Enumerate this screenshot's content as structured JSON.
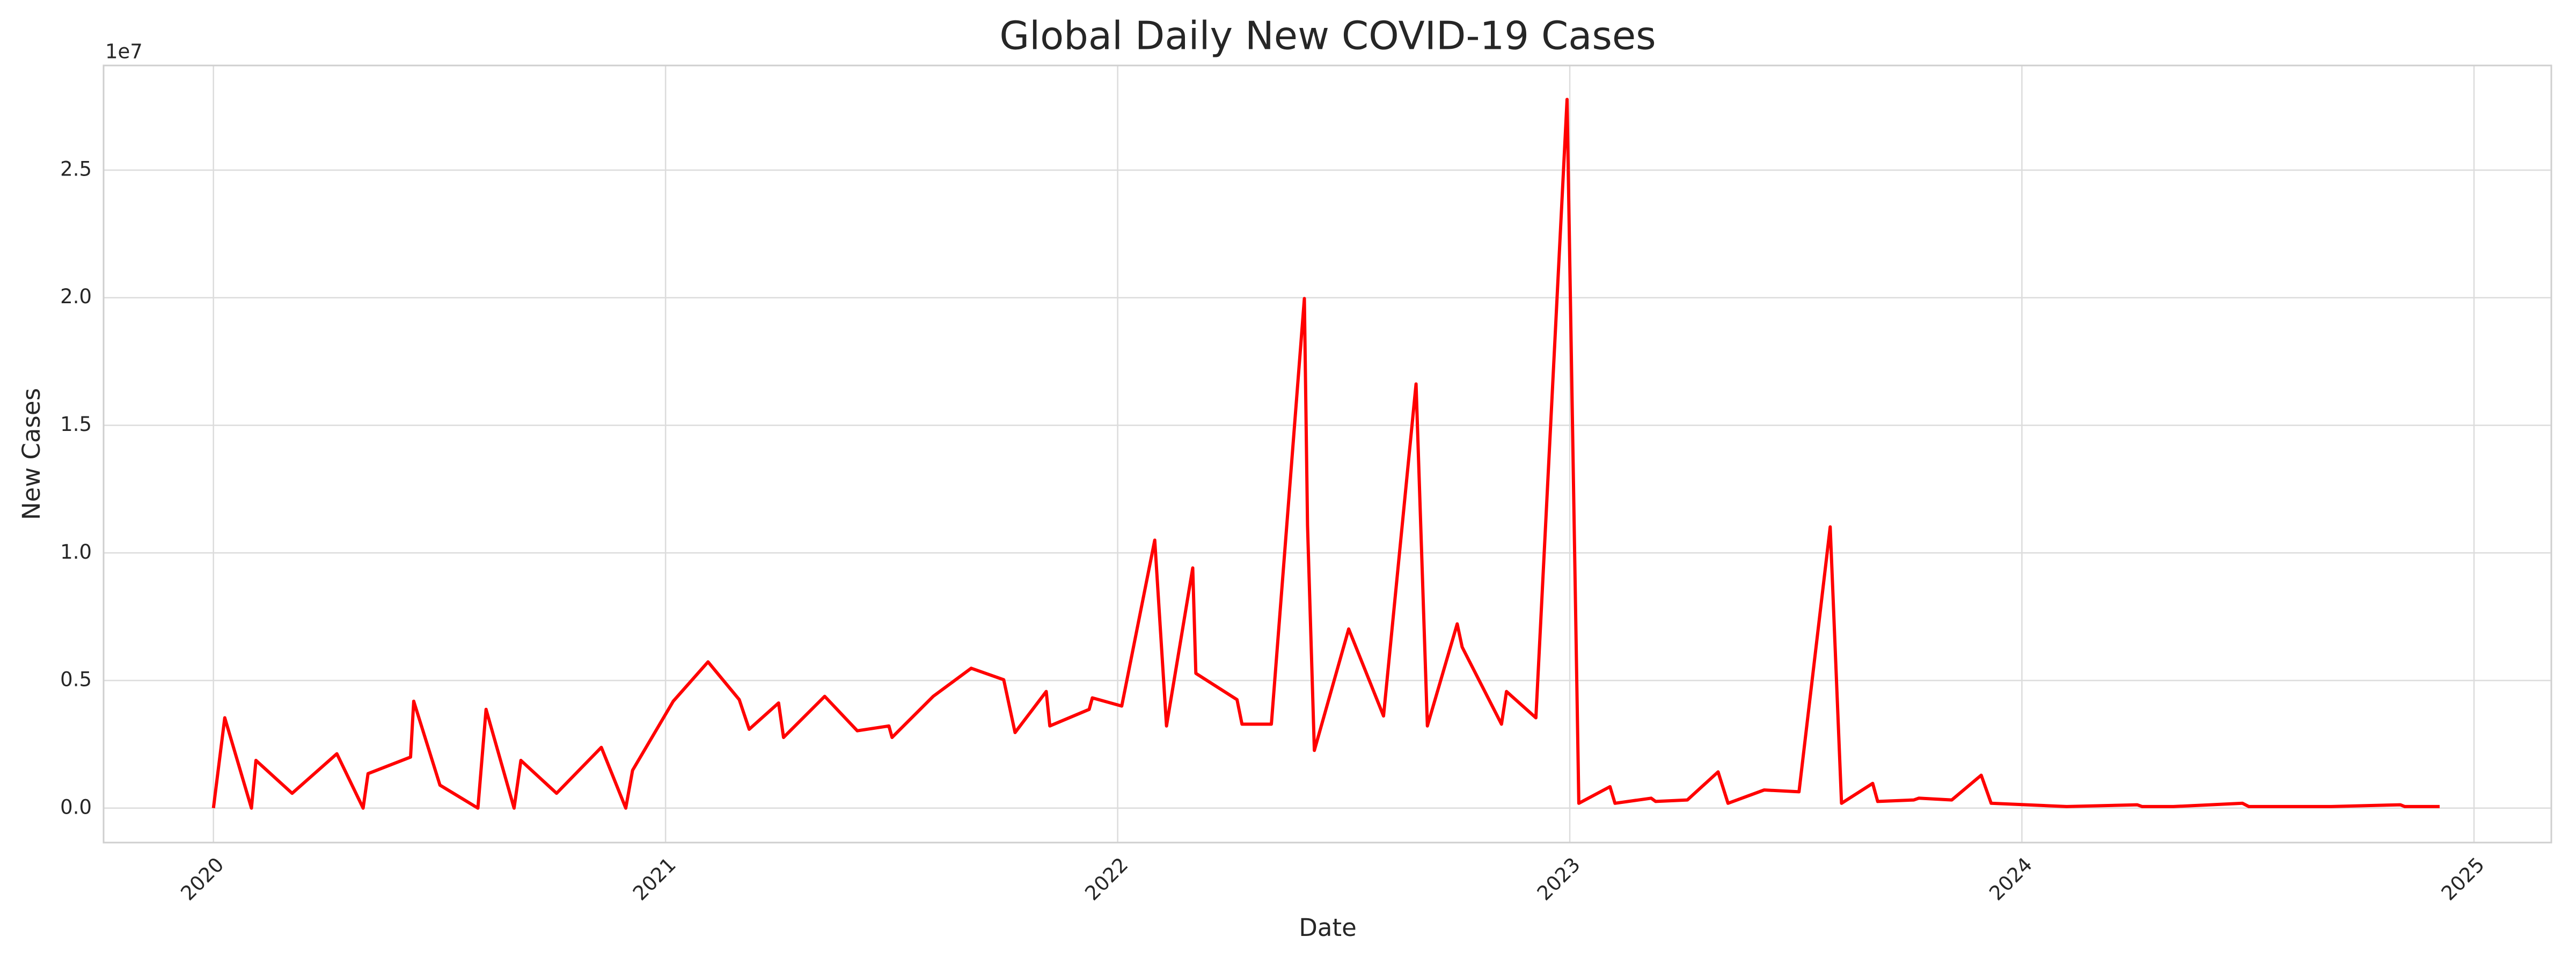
{
  "chart_data": {
    "type": "line",
    "title": "Global Daily New COVID-19 Cases",
    "xlabel": "Date",
    "ylabel": "New Cases",
    "y_offset_label": "1e7",
    "grid": true,
    "xlim": [
      2019.757,
      2025.171
    ],
    "xticks": [
      2020,
      2021,
      2022,
      2023,
      2024,
      2025
    ],
    "ylim": [
      -0.135,
      2.91
    ],
    "yticks": [
      {
        "value": 0,
        "label": "0.0"
      },
      0.5,
      {
        "value": 1,
        "label": "1.0"
      },
      1.5,
      {
        "value": 2,
        "label": "2.0"
      },
      2.5
    ],
    "series": [
      {
        "name": "New Cases",
        "color": "#ff0000",
        "x": [
          2020.0,
          2020.025,
          2020.084,
          2020.094,
          2020.174,
          2020.273,
          2020.331,
          2020.342,
          2020.436,
          2020.443,
          2020.501,
          2020.585,
          2020.603,
          2020.665,
          2020.68,
          2020.759,
          2020.858,
          2020.912,
          2020.927,
          2021.017,
          2021.094,
          2021.163,
          2021.185,
          2021.25,
          2021.261,
          2021.352,
          2021.424,
          2021.494,
          2021.501,
          2021.519,
          2021.592,
          2021.676,
          2021.748,
          2021.773,
          2021.842,
          2021.85,
          2021.937,
          2021.944,
          2022.009,
          2022.082,
          2022.108,
          2022.166,
          2022.173,
          2022.264,
          2022.275,
          2022.34,
          2022.413,
          2022.42,
          2022.435,
          2022.511,
          2022.588,
          2022.66,
          2022.685,
          2022.751,
          2022.762,
          2022.849,
          2022.86,
          2022.925,
          2022.994,
          2023.02,
          2023.089,
          2023.1,
          2023.18,
          2023.19,
          2023.26,
          2023.328,
          2023.35,
          2023.43,
          2023.507,
          2023.576,
          2023.601,
          2023.67,
          2023.681,
          2023.761,
          2023.772,
          2023.845,
          2023.91,
          2023.932,
          2024.099,
          2024.255,
          2024.266,
          2024.335,
          2024.488,
          2024.502,
          2024.684,
          2024.837,
          2024.847,
          2024.924
        ],
        "values": [
          0,
          0.354,
          0,
          0.187,
          0.058,
          0.213,
          0,
          0.135,
          0.2,
          0.419,
          0.09,
          0,
          0.387,
          0,
          0.187,
          0.058,
          0.238,
          0,
          0.148,
          0.419,
          0.573,
          0.425,
          0.309,
          0.412,
          0.277,
          0.438,
          0.303,
          0.322,
          0.277,
          0.309,
          0.438,
          0.548,
          0.503,
          0.296,
          0.457,
          0.322,
          0.387,
          0.432,
          0.4,
          1.05,
          0.322,
          0.941,
          0.528,
          0.425,
          0.329,
          0.329,
          1.997,
          1.108,
          0.226,
          0.702,
          0.361,
          1.662,
          0.322,
          0.722,
          0.631,
          0.329,
          0.457,
          0.354,
          2.777,
          0.019,
          0.084,
          0.019,
          0.039,
          0.026,
          0.032,
          0.142,
          0.019,
          0.071,
          0.064,
          1.102,
          0.019,
          0.097,
          0.026,
          0.032,
          0.039,
          0.032,
          0.129,
          0.019,
          0.006,
          0.013,
          0.006,
          0.006,
          0.019,
          0.006,
          0.006,
          0.013,
          0.006,
          0.006
        ]
      }
    ]
  }
}
